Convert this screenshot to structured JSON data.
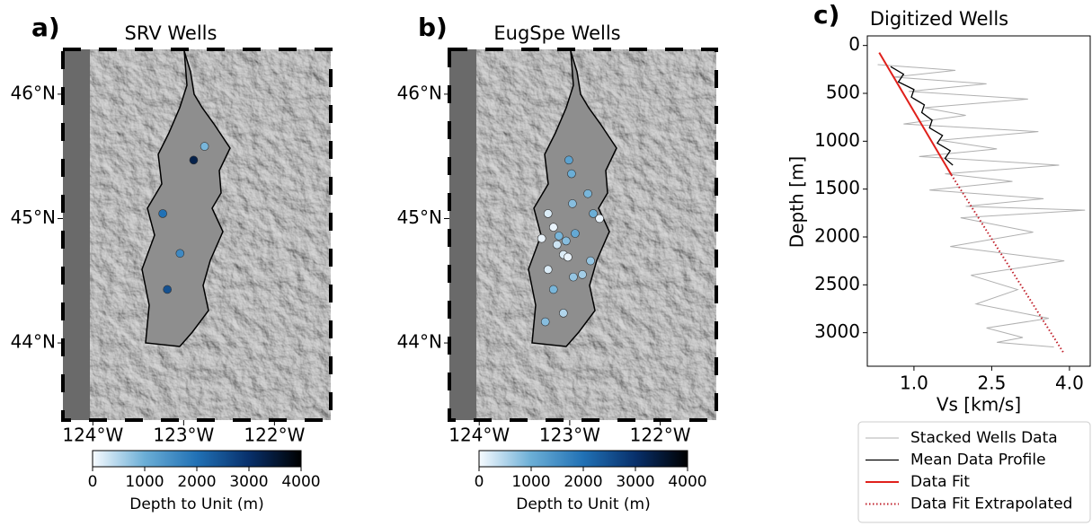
{
  "chart_data": [
    {
      "type": "map",
      "panel_label": "a)",
      "title": "SRV Wells",
      "xlim": [
        -124.33,
        -121.38
      ],
      "ylim": [
        43.38,
        46.36
      ],
      "xticks": [
        {
          "value": -124,
          "label": "124°W"
        },
        {
          "value": -123,
          "label": "123°W"
        },
        {
          "value": -122,
          "label": "122°W"
        }
      ],
      "yticks": [
        {
          "value": 44,
          "label": "44°N"
        },
        {
          "value": 45,
          "label": "45°N"
        },
        {
          "value": 46,
          "label": "46°N"
        }
      ],
      "points": {
        "x": [
          -122.77,
          -122.89,
          -123.23,
          -123.04,
          -123.18
        ],
        "y": [
          45.58,
          45.47,
          45.04,
          44.72,
          44.43
        ],
        "values": [
          900,
          3300,
          2000,
          1600,
          2500
        ]
      },
      "colorbar": {
        "label": "Depth to Unit (m)",
        "lim": [
          0,
          4000
        ],
        "ticks": [
          0,
          1000,
          2000,
          3000,
          4000
        ],
        "colormap": [
          "#f7fbff",
          "#6baed6",
          "#2171b5",
          "#08306b",
          "#000000"
        ]
      }
    },
    {
      "type": "map",
      "panel_label": "b)",
      "title": "EugSpe Wells",
      "xlim": [
        -124.33,
        -121.38
      ],
      "ylim": [
        43.38,
        46.36
      ],
      "xticks": [
        {
          "value": -124,
          "label": "124°W"
        },
        {
          "value": -123,
          "label": "123°W"
        },
        {
          "value": -122,
          "label": "122°W"
        }
      ],
      "yticks": [
        {
          "value": 44,
          "label": "44°N"
        },
        {
          "value": 45,
          "label": "45°N"
        },
        {
          "value": 46,
          "label": "46°N"
        }
      ],
      "points": {
        "x": [
          -123.01,
          -122.98,
          -122.8,
          -122.97,
          -122.67,
          -123.24,
          -122.74,
          -123.18,
          -122.94,
          -123.12,
          -123.31,
          -123.04,
          -123.14,
          -123.07,
          -123.02,
          -122.77,
          -123.24,
          -122.86,
          -122.96,
          -123.18,
          -123.07,
          -123.27
        ],
        "y": [
          45.47,
          45.36,
          45.2,
          45.12,
          45.0,
          45.04,
          45.04,
          44.93,
          44.88,
          44.86,
          44.84,
          44.82,
          44.79,
          44.71,
          44.69,
          44.66,
          44.59,
          44.55,
          44.53,
          44.43,
          44.24,
          44.17
        ],
        "values": [
          1200,
          1000,
          900,
          800,
          100,
          200,
          1000,
          100,
          1100,
          900,
          100,
          800,
          300,
          200,
          100,
          700,
          200,
          600,
          700,
          900,
          500,
          800
        ]
      },
      "colorbar": {
        "label": "Depth to Unit (m)",
        "lim": [
          0,
          4000
        ],
        "ticks": [
          0,
          1000,
          2000,
          3000,
          4000
        ],
        "colormap": [
          "#f7fbff",
          "#6baed6",
          "#2171b5",
          "#08306b",
          "#000000"
        ]
      }
    },
    {
      "type": "line",
      "panel_label": "c)",
      "title": "Digitized Wells",
      "xlabel": "Vs [km/s]",
      "ylabel": "Depth [m]",
      "xlim": [
        0.1,
        4.4
      ],
      "ylim": [
        3350,
        -100
      ],
      "xticks": [
        {
          "value": 1,
          "label": "1.0"
        },
        2.5,
        {
          "value": 4,
          "label": "4.0"
        }
      ],
      "yticks": [
        0,
        500,
        1000,
        1500,
        2000,
        2500,
        3000
      ],
      "legend": "below",
      "series": [
        {
          "name": "Stacked Wells Data",
          "color": "#b0b0b0",
          "style": "solid",
          "x": [
            0.3,
            1.8,
            0.6,
            2.4,
            0.9,
            3.2,
            1.2,
            2.0,
            0.8,
            3.4,
            1.5,
            2.6,
            1.1,
            3.8,
            1.6,
            2.9,
            1.3,
            3.5,
            2.0,
            4.3,
            1.9,
            3.3,
            1.7,
            3.9,
            2.1,
            3.0,
            2.2,
            3.6,
            2.4,
            3.1,
            2.6,
            3.7
          ],
          "values": [
            200,
            260,
            330,
            400,
            480,
            560,
            650,
            730,
            820,
            900,
            990,
            1080,
            1160,
            1250,
            1340,
            1420,
            1510,
            1600,
            1680,
            1720,
            1800,
            1950,
            2100,
            2250,
            2400,
            2550,
            2700,
            2850,
            2950,
            3050,
            3100,
            3150
          ]
        },
        {
          "name": "Mean Data Profile",
          "color": "#000000",
          "style": "solid",
          "x": [
            0.55,
            0.8,
            0.7,
            1.0,
            0.95,
            1.2,
            1.15,
            1.35,
            1.3,
            1.55,
            1.45,
            1.7,
            1.6,
            1.75
          ],
          "values": [
            220,
            300,
            380,
            460,
            540,
            620,
            700,
            780,
            860,
            940,
            1020,
            1100,
            1180,
            1250
          ]
        },
        {
          "name": "Data Fit",
          "color": "#e0201b",
          "style": "solid",
          "x": [
            0.33,
            1.72
          ],
          "values": [
            75,
            1350
          ]
        },
        {
          "name": "Data Fit Extrapolated",
          "color": "#c0202b",
          "style": "dotted",
          "x": [
            1.72,
            3.88
          ],
          "values": [
            1350,
            3205
          ]
        }
      ]
    }
  ]
}
